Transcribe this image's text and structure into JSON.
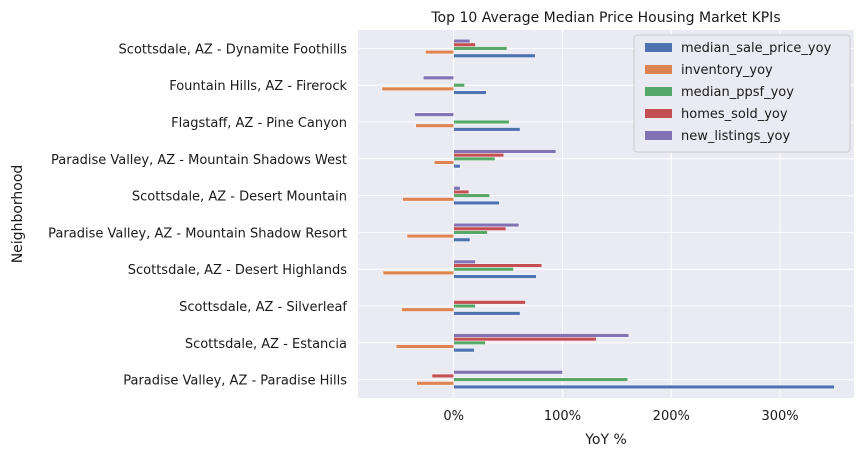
{
  "chart_data": {
    "type": "bar",
    "orientation": "horizontal",
    "title": "Top 10 Average Median Price Housing Market KPIs",
    "xlabel": "YoY %",
    "ylabel": "Neighborhood",
    "xlim": [
      -0.88,
      3.68
    ],
    "x_ticks": [
      0,
      1,
      2,
      3
    ],
    "x_tick_labels": [
      "0%",
      "100%",
      "200%",
      "300%"
    ],
    "grid": true,
    "legend_position": "upper right",
    "categories": [
      "Paradise Valley, AZ - Paradise Hills",
      "Scottsdale, AZ - Estancia",
      "Scottsdale, AZ - Silverleaf",
      "Scottsdale, AZ - Desert Highlands",
      "Paradise Valley, AZ - Mountain Shadow Resort",
      "Scottsdale, AZ - Desert Mountain",
      "Paradise Valley, AZ - Mountain Shadows West",
      "Flagstaff, AZ - Pine Canyon",
      "Fountain Hills, AZ - Firerock",
      "Scottsdale, AZ - Dynamite Foothills"
    ],
    "series": [
      {
        "name": "median_sale_price_yoy",
        "color": "#4c72b0",
        "values": [
          3.5,
          0.19,
          0.61,
          0.76,
          0.15,
          0.42,
          0.06,
          0.61,
          0.3,
          0.75
        ]
      },
      {
        "name": "inventory_yoy",
        "color": "#dd8452",
        "values": [
          -0.34,
          -0.53,
          -0.48,
          -0.65,
          -0.43,
          -0.47,
          -0.18,
          -0.35,
          -0.66,
          -0.26
        ]
      },
      {
        "name": "median_ppsf_yoy",
        "color": "#55a868",
        "values": [
          1.6,
          0.29,
          0.2,
          0.55,
          0.31,
          0.33,
          0.38,
          0.51,
          0.1,
          0.49
        ]
      },
      {
        "name": "homes_sold_yoy",
        "color": "#c44e52",
        "values": [
          -0.2,
          1.31,
          0.66,
          0.81,
          0.48,
          0.14,
          0.46,
          0.0,
          0.0,
          0.2
        ]
      },
      {
        "name": "new_listings_yoy",
        "color": "#8172b3",
        "values": [
          1.0,
          1.61,
          0.0,
          0.2,
          0.6,
          0.06,
          0.94,
          -0.36,
          -0.28,
          0.15
        ]
      }
    ]
  },
  "colors": {
    "plot_background": "#eaeaf2",
    "grid": "#ffffff",
    "legend_background": "#eaeaf2",
    "legend_border": "#cccccc"
  }
}
